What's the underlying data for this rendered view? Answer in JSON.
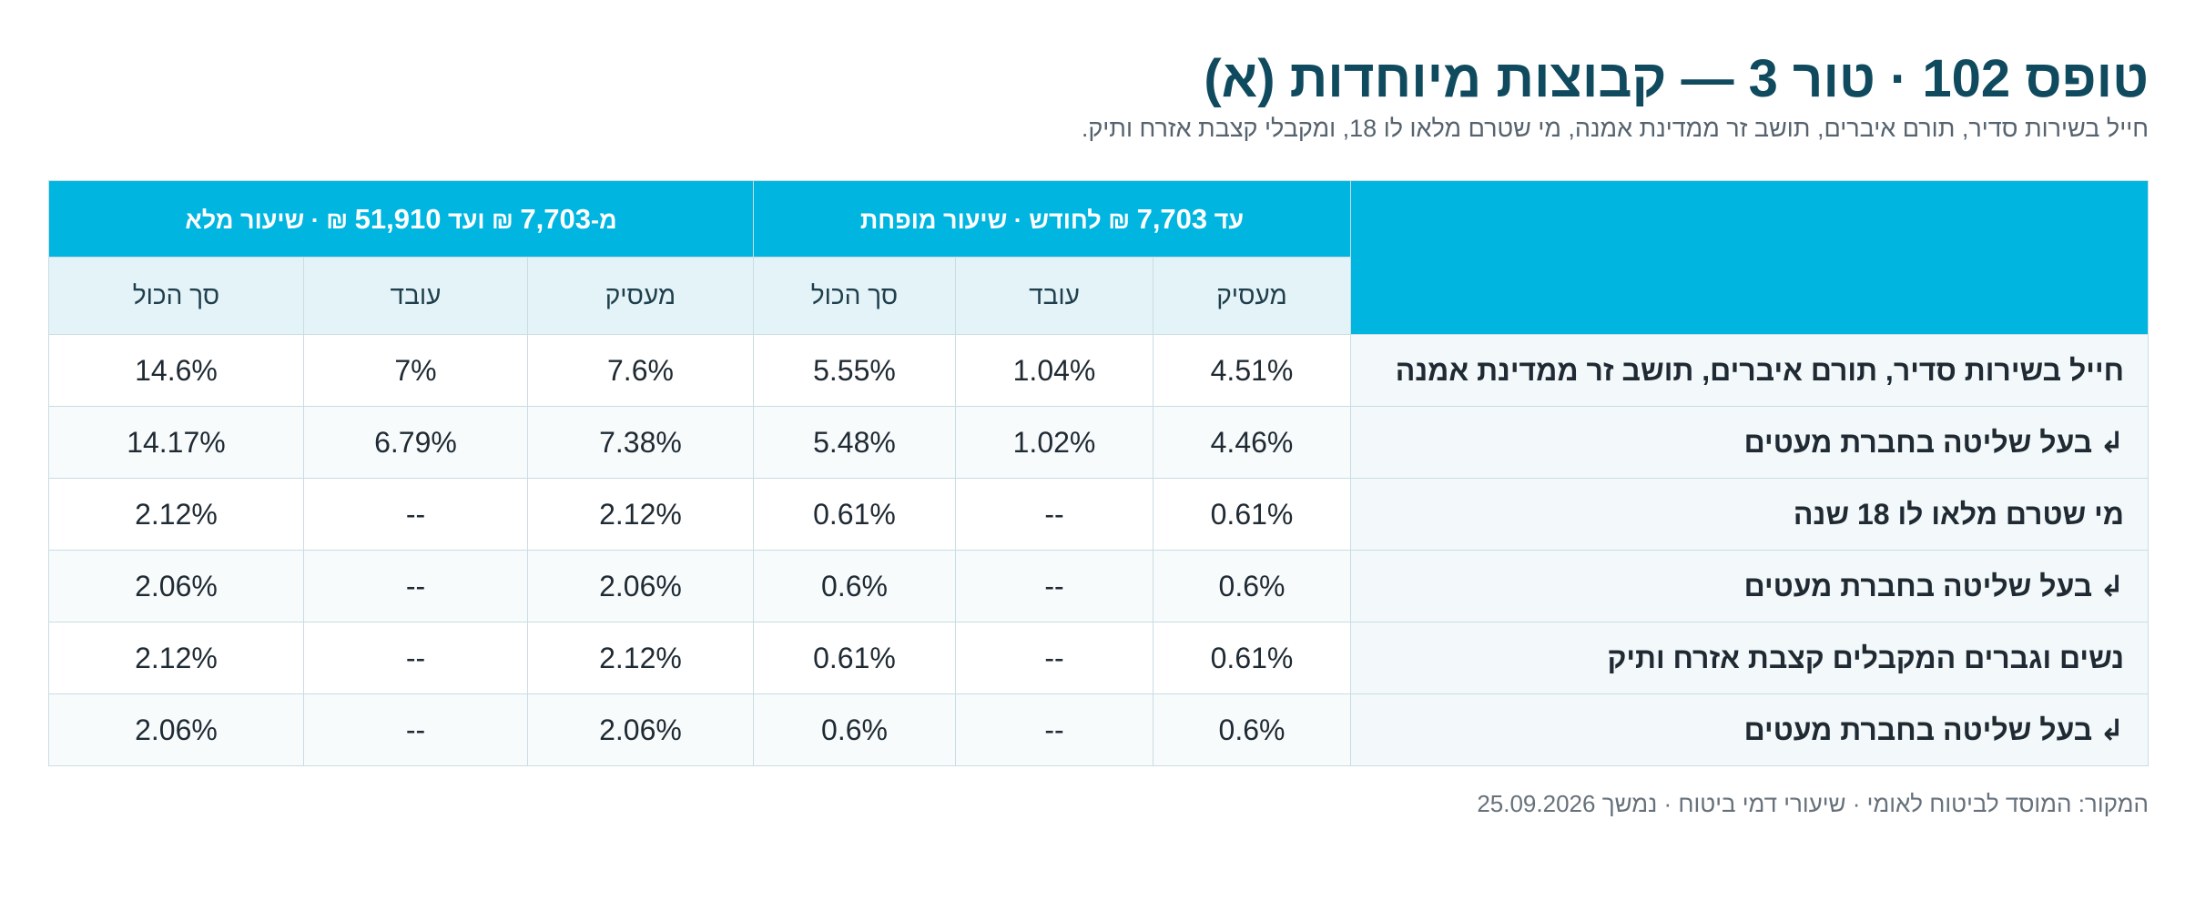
{
  "header": {
    "title": "טופס 102 · טור 3 — קבוצות מיוחדות (א)",
    "subtitle": "חייל בשירות סדיר, תורם איברים, תושב זר ממדינת אמנה, מי שטרם מלאו לו 18, ומקבלי קצבת אזרח ותיק."
  },
  "table": {
    "groups": [
      {
        "prefix": "עד ",
        "amount": "7,703",
        "suffix": " ₪ לחודש · שיעור מופחת"
      },
      {
        "prefix": "מ-",
        "amount": "7,703",
        "middle": " ₪ ועד ",
        "amount2": "51,910",
        "suffix": " ₪ · שיעור מלא"
      }
    ],
    "subheaders": [
      "מעסיק",
      "עובד",
      "סך הכול",
      "מעסיק",
      "עובד",
      "סך הכול"
    ],
    "row_arrow": "↲",
    "rows": [
      {
        "label": "חייל בשירות סדיר, תורם איברים, תושב זר ממדינת אמנה",
        "sub": false,
        "values": [
          "4.51%",
          "1.04%",
          "5.55%",
          "7.6%",
          "7%",
          "14.6%"
        ]
      },
      {
        "label": "בעל שליטה בחברת מעטים",
        "sub": true,
        "values": [
          "4.46%",
          "1.02%",
          "5.48%",
          "7.38%",
          "6.79%",
          "14.17%"
        ]
      },
      {
        "label": "מי שטרם מלאו לו 18 שנה",
        "sub": false,
        "values": [
          "0.61%",
          "--",
          "0.61%",
          "2.12%",
          "--",
          "2.12%"
        ]
      },
      {
        "label": "בעל שליטה בחברת מעטים",
        "sub": true,
        "values": [
          "0.6%",
          "--",
          "0.6%",
          "2.06%",
          "--",
          "2.06%"
        ]
      },
      {
        "label": "נשים וגברים המקבלים קצבת אזרח ותיק",
        "sub": false,
        "values": [
          "0.61%",
          "--",
          "0.61%",
          "2.12%",
          "--",
          "2.12%"
        ]
      },
      {
        "label": "בעל שליטה בחברת מעטים",
        "sub": true,
        "values": [
          "0.6%",
          "--",
          "0.6%",
          "2.06%",
          "--",
          "2.06%"
        ]
      }
    ]
  },
  "footer": {
    "source": "המקור: המוסד לביטוח לאומי · שיעורי דמי ביטוח · נמשך 25.09.2026"
  },
  "colors": {
    "header_band": "#00b5e0",
    "subheader_bg": "#e4f3f8",
    "title": "#0f4a5e"
  }
}
